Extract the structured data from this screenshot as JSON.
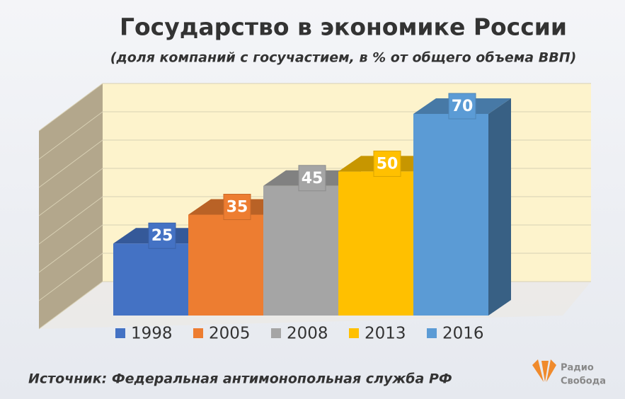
{
  "chart_data": {
    "type": "bar3d",
    "title": "Государство в экономике России",
    "subtitle": "(доля компаний с госучастием, в % от общего объема ВВП)",
    "categories": [
      "1998",
      "2005",
      "2008",
      "2013",
      "2016"
    ],
    "values": [
      25,
      35,
      45,
      50,
      70
    ],
    "colors": [
      "#4472c4",
      "#ed7d31",
      "#a5a5a5",
      "#ffc000",
      "#5b9bd5"
    ],
    "ylim": [
      0,
      70
    ],
    "yticks": [
      0,
      10,
      20,
      30,
      40,
      50,
      60,
      70
    ],
    "grid": true,
    "legend": "bottom",
    "source": "Источник: Федеральная антимонопольная служба РФ"
  },
  "logo": {
    "line1": "Радио",
    "line2": "Свобода"
  }
}
